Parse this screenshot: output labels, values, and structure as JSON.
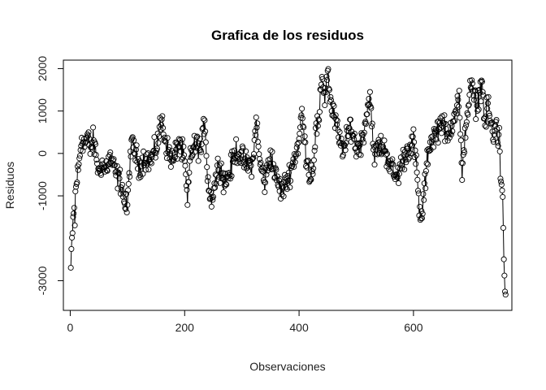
{
  "chart_data": {
    "type": "scatter",
    "plot_style": "points joined by lines (type='b')",
    "title": "Grafica de los residuos",
    "xlabel": "Observaciones",
    "ylabel": "Residuos",
    "xlim": [
      -12,
      772
    ],
    "ylim": [
      -3700,
      2200
    ],
    "x_ticks": [
      0,
      200,
      400,
      600
    ],
    "y_ticks": [
      -3000,
      -1000,
      0,
      1000,
      2000
    ],
    "x_tick_labels": [
      "0",
      "200",
      "400",
      "600"
    ],
    "y_tick_labels": [
      "-3000",
      "-1000",
      "0",
      "1000",
      "2000"
    ],
    "grid": false,
    "legend": "none",
    "n_points": 761,
    "color": "#000000",
    "series": [
      {
        "x": [
          1,
          2,
          3,
          4,
          5,
          6,
          7,
          8,
          9,
          10,
          12,
          15,
          20,
          25,
          30,
          35,
          40,
          45,
          50,
          55,
          60,
          70,
          80,
          90,
          95,
          100,
          105,
          110,
          120,
          130,
          140,
          150,
          160,
          165,
          170,
          180,
          190,
          200,
          205,
          210,
          220,
          230,
          235,
          240,
          245,
          250,
          260,
          270,
          280,
          290,
          300,
          310,
          320,
          325,
          330,
          340,
          350,
          360,
          370,
          380,
          385,
          390,
          400,
          405,
          410,
          420,
          425,
          430,
          435,
          440,
          445,
          450,
          455,
          460,
          465,
          470,
          480,
          490,
          500,
          510,
          520,
          525,
          530,
          540,
          550,
          560,
          570,
          580,
          590,
          600,
          605,
          610,
          615,
          618,
          620,
          625,
          630,
          640,
          650,
          660,
          670,
          680,
          685,
          690,
          700,
          710,
          720,
          725,
          730,
          735,
          740,
          745,
          748,
          750,
          752,
          754,
          756,
          758,
          760
        ],
        "y": [
          -2700,
          -2300,
          -2000,
          -1900,
          -1500,
          -1400,
          -1300,
          -1700,
          -900,
          -800,
          -600,
          -300,
          400,
          200,
          400,
          100,
          300,
          0,
          -500,
          -200,
          -400,
          -100,
          -500,
          -700,
          -1200,
          -1300,
          0,
          200,
          -300,
          -100,
          -200,
          100,
          800,
          400,
          100,
          -200,
          300,
          -200,
          -1200,
          0,
          200,
          100,
          900,
          -500,
          -1100,
          -900,
          -200,
          -700,
          -400,
          100,
          -100,
          -300,
          -200,
          900,
          -100,
          -700,
          0,
          -600,
          -900,
          -600,
          -400,
          -200,
          300,
          1000,
          200,
          -600,
          -200,
          600,
          700,
          1900,
          1300,
          2000,
          1200,
          900,
          700,
          300,
          100,
          700,
          100,
          300,
          1100,
          1400,
          -100,
          200,
          100,
          -300,
          -600,
          -200,
          100,
          300,
          -300,
          -1300,
          -1600,
          -900,
          -800,
          0,
          300,
          500,
          800,
          300,
          900,
          1300,
          -700,
          500,
          1600,
          1100,
          1700,
          600,
          1200,
          700,
          300,
          800,
          300,
          600,
          -600,
          -700,
          -1000,
          -2500,
          -3300
        ]
      }
    ]
  }
}
